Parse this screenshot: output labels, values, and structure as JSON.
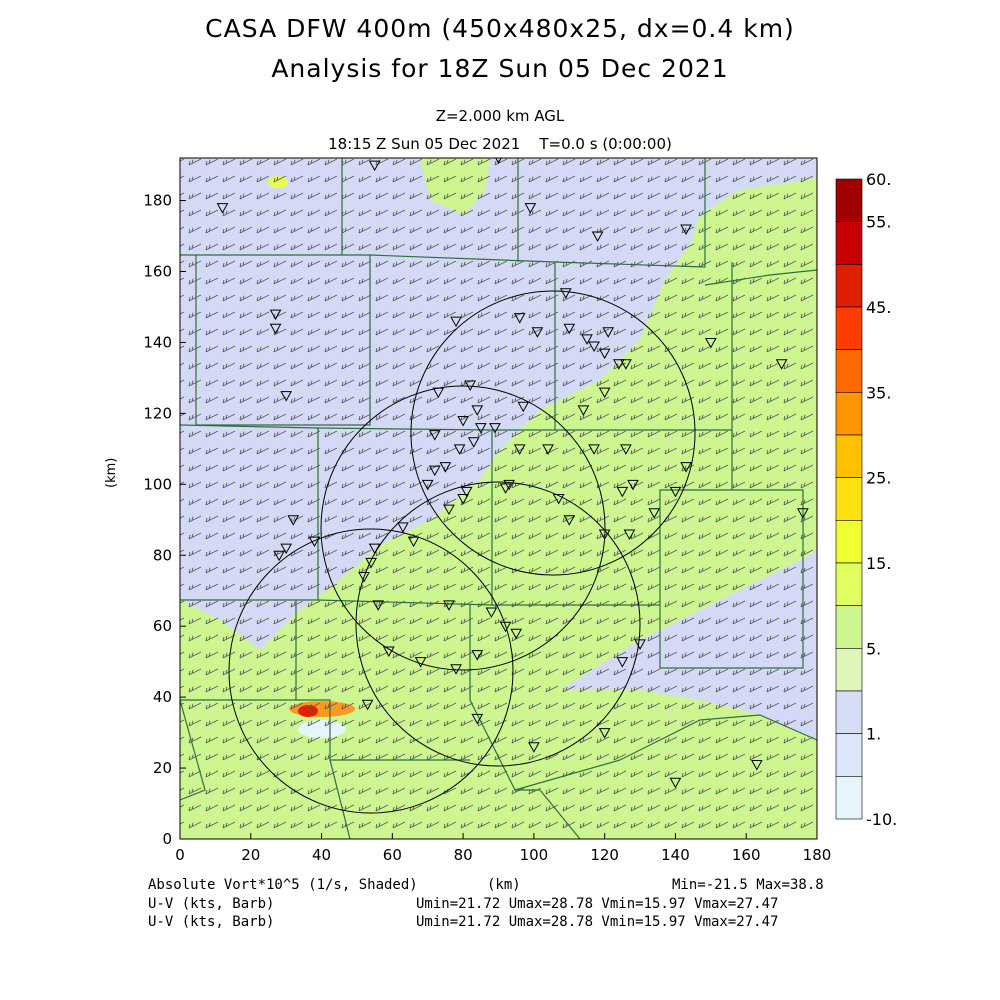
{
  "header": {
    "title_line1": "CASA DFW 400m (450x480x25, dx=0.4 km)",
    "title_line2": "Analysis for 18Z Sun 05 Dec 2021",
    "level": "Z=2.000 km AGL",
    "valid_time": "18:15 Z Sun 05 Dec 2021    T=0.0 s (0:00:00)"
  },
  "axes": {
    "x_ticks": [
      "0",
      "20",
      "40",
      "60",
      "80",
      "100",
      "120",
      "140",
      "160",
      "180"
    ],
    "y_ticks": [
      "0",
      "20",
      "40",
      "60",
      "80",
      "100",
      "120",
      "140",
      "160",
      "180"
    ],
    "x_label": "(km)",
    "y_label": "(km)",
    "x_range": [
      0,
      180
    ],
    "y_range": [
      0,
      192
    ]
  },
  "colorbar": {
    "labels": [
      "60.",
      "55.",
      "45.",
      "35.",
      "25.",
      "15.",
      "5.",
      "1.",
      "-10."
    ],
    "colors": [
      "#a00000",
      "#c80000",
      "#e01e00",
      "#ff3c00",
      "#ff6a00",
      "#ff9600",
      "#ffc000",
      "#ffe010",
      "#f0ff30",
      "#e0ff60",
      "#cdf590",
      "#dff5bb",
      "#d5dcf5",
      "#dbe6f8",
      "#e6f4fb"
    ]
  },
  "footer": {
    "field1": "Absolute Vort*10^5 (1/s, Shaded)",
    "field1_unit": "(km)",
    "field1_stats": "Min=-21.5 Max=38.8",
    "field2": "U-V (kts, Barb)",
    "field2_stats": "Umin=21.72 Umax=28.78 Vmin=15.97 Vmax=27.47",
    "field3": "U-V (kts, Barb)",
    "field3_stats": "Umin=21.72 Umax=28.78 Vmin=15.97 Vmax=27.47"
  },
  "colors": {
    "purple_shade": "#d4d9f6",
    "light_green": "#dff5bb",
    "green": "#cdf590",
    "yellow_green": "#e8ff50",
    "orange": "#ff8c00",
    "red": "#e01e00",
    "county_lines": "#2f6f3f"
  },
  "radar_sites_km": [
    [
      105,
      115
    ],
    [
      80,
      88
    ],
    [
      100,
      68
    ],
    [
      54,
      52
    ],
    [
      130,
      98
    ],
    [
      56,
      72
    ]
  ]
}
